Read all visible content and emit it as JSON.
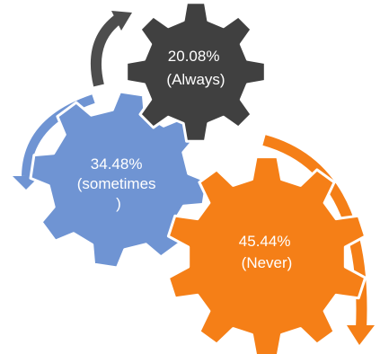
{
  "colors": {
    "background": "#ffffff",
    "gear_dark": "#404040",
    "gear_blue": "#6f94d3",
    "gear_orange": "#f57f17",
    "arrow_dark": "#4d4d4d",
    "arrow_blue": "#6f94d3",
    "arrow_orange": "#f57f17",
    "gear_outline": "#ffffff"
  },
  "gears": [
    {
      "id": "always",
      "percent": "20.08%",
      "label_lines": [
        "20.08%",
        "(Always)"
      ],
      "value": 20.08,
      "color_key": "gear_dark"
    },
    {
      "id": "sometimes",
      "percent": "34.48%",
      "label_lines": [
        "34.48%",
        "(sometimes",
        ")"
      ],
      "value": 34.48,
      "color_key": "gear_blue"
    },
    {
      "id": "never",
      "percent": "45.44%",
      "label_lines": [
        "45.44%",
        "(Never)"
      ],
      "value": 45.44,
      "color_key": "gear_orange"
    }
  ],
  "arrows": [
    {
      "id": "arrow-dark",
      "color_key": "arrow_dark"
    },
    {
      "id": "arrow-blue",
      "color_key": "arrow_blue"
    },
    {
      "id": "arrow-orange",
      "color_key": "arrow_orange"
    }
  ]
}
